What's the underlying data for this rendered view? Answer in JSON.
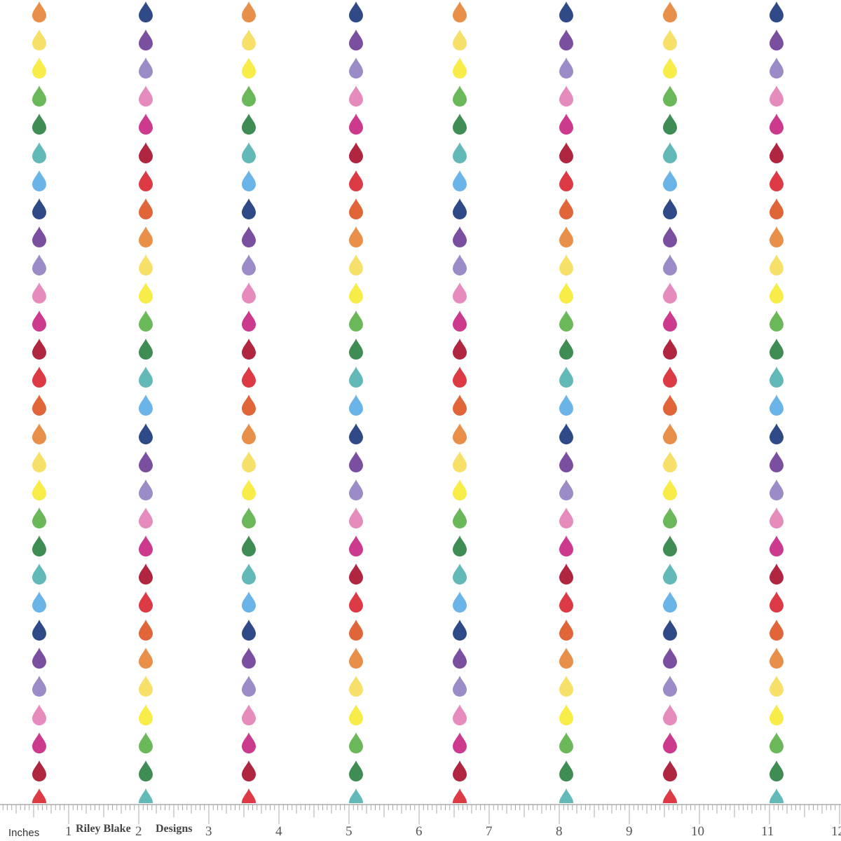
{
  "pattern": {
    "color_cycle": [
      "#e8904a",
      "#f7e06a",
      "#f8ec48",
      "#6bb85a",
      "#3f8c54",
      "#62b9b8",
      "#6ab4e8",
      "#2f4a86",
      "#7b4fa0",
      "#9b8cc8",
      "#e58cbc",
      "#cc3a8e",
      "#b02640",
      "#dc3a44",
      "#e0663a"
    ],
    "column_phase": [
      0,
      7,
      0,
      7,
      0,
      7,
      0,
      7
    ],
    "columns": 8,
    "rows": 29
  },
  "ruler": {
    "unit_label": "Inches",
    "numbers": [
      "1",
      "2",
      "3",
      "4",
      "5",
      "6",
      "7",
      "8",
      "9",
      "10",
      "11",
      "12"
    ],
    "brand_word_1": "Riley Blake",
    "brand_word_2": "Designs"
  }
}
